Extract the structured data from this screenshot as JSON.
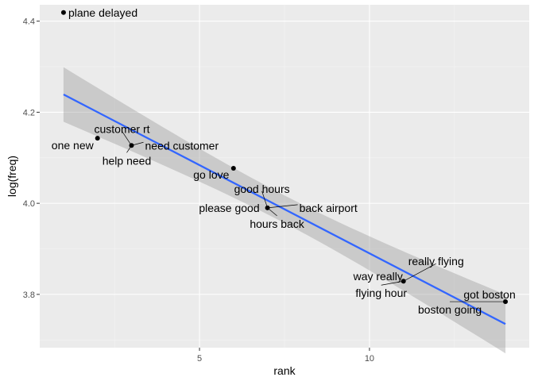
{
  "chart_data": {
    "type": "scatter",
    "xlabel": "rank",
    "ylabel": "log(freq)",
    "xlim": [
      0.3,
      14.7
    ],
    "ylim": [
      3.683,
      4.436
    ],
    "x_ticks": [
      5,
      10
    ],
    "y_ticks": [
      3.8,
      4.0,
      4.2,
      4.4
    ],
    "x_tick_labels": [
      "5",
      "10"
    ],
    "y_tick_labels": [
      "3.8",
      "4.0",
      "4.2",
      "4.4"
    ],
    "grid": true,
    "points": [
      {
        "x": 1,
        "y": 4.419
      },
      {
        "x": 2,
        "y": 4.143
      },
      {
        "x": 3,
        "y": 4.127
      },
      {
        "x": 6,
        "y": 4.077
      },
      {
        "x": 7,
        "y": 3.99
      },
      {
        "x": 11,
        "y": 3.829
      },
      {
        "x": 14,
        "y": 3.784
      }
    ],
    "labels": [
      {
        "text": "plane delayed",
        "x": 1,
        "y": 4.419
      },
      {
        "text": "one new",
        "x": 2,
        "y": 4.143
      },
      {
        "text": "customer rt",
        "x": 3,
        "y": 4.127
      },
      {
        "text": "need customer",
        "x": 3,
        "y": 4.127
      },
      {
        "text": "help need",
        "x": 3,
        "y": 4.127
      },
      {
        "text": "go love",
        "x": 6,
        "y": 4.077
      },
      {
        "text": "good hours",
        "x": 7,
        "y": 3.99
      },
      {
        "text": "please good",
        "x": 7,
        "y": 3.99
      },
      {
        "text": "back airport",
        "x": 7,
        "y": 3.99
      },
      {
        "text": "hours back",
        "x": 7,
        "y": 3.99
      },
      {
        "text": "really flying",
        "x": 11,
        "y": 3.829
      },
      {
        "text": "way really",
        "x": 11,
        "y": 3.829
      },
      {
        "text": "flying hour",
        "x": 11,
        "y": 3.829
      },
      {
        "text": "got boston",
        "x": 14,
        "y": 3.784
      },
      {
        "text": "boston going",
        "x": 14,
        "y": 3.784
      }
    ],
    "smooth": {
      "method": "lm",
      "x_start": 1,
      "x_end": 14,
      "y_start": 4.239,
      "y_end": 3.735,
      "ci_lower_start": 4.179,
      "ci_upper_start": 4.299,
      "ci_lower_end": 3.669,
      "ci_upper_end": 3.798,
      "ci_half_width_mid": 0.0304
    },
    "colors": {
      "panel": "#ebebeb",
      "grid_major": "#ffffff",
      "grid_minor": "#f5f5f5",
      "point": "#000000",
      "line": "#3366ff",
      "ribbon": "#999999"
    }
  }
}
